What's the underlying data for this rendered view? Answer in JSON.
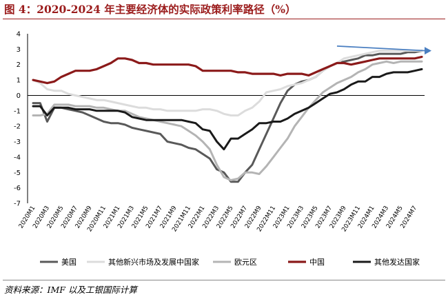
{
  "header": {
    "title": "图 4：2020-2024 年主要经济体的实际政策利率路径（%）"
  },
  "footer": {
    "source": "资料来源：IMF 以及工银国际计算"
  },
  "chart_data": {
    "type": "line",
    "title": "图 4：2020-2024 年主要经济体的实际政策利率路径（%）",
    "xlabel": "",
    "ylabel": "",
    "ylim": [
      -7,
      4
    ],
    "yticks": [
      -7,
      -6,
      -5,
      -4,
      -3,
      -2,
      -1,
      0,
      1,
      2,
      3,
      4
    ],
    "grid": false,
    "legend_position": "bottom",
    "categories": [
      "2020M1",
      "2020M2",
      "2020M3",
      "2020M4",
      "2020M5",
      "2020M6",
      "2020M7",
      "2020M8",
      "2020M9",
      "2020M10",
      "2020M11",
      "2020M12",
      "2021M1",
      "2021M2",
      "2021M3",
      "2021M4",
      "2021M5",
      "2021M6",
      "2021M7",
      "2021M8",
      "2021M9",
      "2021M10",
      "2021M11",
      "2021M12",
      "2022M1",
      "2022M2",
      "2022M3",
      "2022M4",
      "2022M5",
      "2022M6",
      "2022M7",
      "2022M8",
      "2022M9",
      "2022M10",
      "2022M11",
      "2022M12",
      "2023M1",
      "2023M2",
      "2023M3",
      "2023M4",
      "2023M5",
      "2023M6",
      "2023M7",
      "2023M8",
      "2023M9",
      "2023M10",
      "2023M11",
      "2023M12",
      "2024M1",
      "2024M2",
      "2024M3",
      "2024M4",
      "2024M5",
      "2024M6",
      "2024M7",
      "2024M8"
    ],
    "tick_labels": [
      "2020M1",
      "2020M3",
      "2020M5",
      "2020M7",
      "2020M9",
      "2020M11",
      "2021M1",
      "2021M3",
      "2021M5",
      "2021M7",
      "2021M9",
      "2021M11",
      "2022M1",
      "2022M3",
      "2022M5",
      "2022M7",
      "2022M9",
      "2022M11",
      "2023M1",
      "2023M3",
      "2023M5",
      "2023M7",
      "2023M9",
      "2023M11",
      "2024M1",
      "2024M3",
      "2024M5",
      "2024M7"
    ],
    "series": [
      {
        "name": "美国",
        "color": "#595959",
        "width": 3,
        "values": [
          -0.5,
          -0.5,
          -1.7,
          -0.8,
          -0.8,
          -0.9,
          -1.0,
          -1.1,
          -1.3,
          -1.5,
          -1.7,
          -1.8,
          -1.8,
          -1.9,
          -2.1,
          -2.2,
          -2.3,
          -2.4,
          -2.5,
          -3.0,
          -3.1,
          -3.2,
          -3.4,
          -3.5,
          -3.8,
          -4.1,
          -4.8,
          -5.0,
          -5.6,
          -5.6,
          -5.0,
          -4.5,
          -3.5,
          -2.5,
          -1.5,
          -0.5,
          0.3,
          0.7,
          0.9,
          1.0,
          1.2,
          1.6,
          1.9,
          2.1,
          2.2,
          2.3,
          2.4,
          2.6,
          2.6,
          2.7,
          2.7,
          2.7,
          2.7,
          2.8,
          2.8,
          2.9
        ]
      },
      {
        "name": "其他新兴市场及发展中国家",
        "color": "#dcdcdc",
        "width": 3,
        "values": [
          1.0,
          0.8,
          0.4,
          0.3,
          0.3,
          0.1,
          0.0,
          -0.1,
          -0.2,
          -0.3,
          -0.3,
          -0.4,
          -0.5,
          -0.6,
          -0.7,
          -0.8,
          -0.8,
          -0.9,
          -0.9,
          -1.0,
          -1.0,
          -1.0,
          -1.0,
          -1.0,
          -0.9,
          -0.9,
          -1.0,
          -1.2,
          -1.3,
          -1.3,
          -1.0,
          -0.8,
          -0.4,
          0.2,
          0.3,
          0.4,
          0.6,
          0.7,
          0.8,
          1.0,
          1.2,
          1.6,
          1.9,
          2.1,
          2.4,
          2.5,
          2.6,
          2.7,
          2.8,
          2.9,
          2.9,
          2.9,
          2.9,
          2.9,
          2.9,
          2.9
        ]
      },
      {
        "name": "欧元区",
        "color": "#b4b4b4",
        "width": 3,
        "values": [
          -1.3,
          -1.3,
          -1.2,
          -0.6,
          -0.6,
          -0.6,
          -0.7,
          -0.7,
          -0.7,
          -0.8,
          -0.8,
          -0.9,
          -1.0,
          -1.0,
          -1.2,
          -1.4,
          -1.5,
          -1.6,
          -1.7,
          -1.8,
          -1.9,
          -2.0,
          -2.3,
          -2.6,
          -3.0,
          -3.5,
          -4.5,
          -5.3,
          -5.5,
          -5.4,
          -5.0,
          -5.0,
          -5.1,
          -4.6,
          -4.0,
          -3.4,
          -2.8,
          -2.0,
          -1.4,
          -0.8,
          -0.3,
          0.2,
          0.5,
          0.8,
          1.0,
          1.2,
          1.5,
          1.7,
          2.0,
          2.1,
          2.2,
          2.1,
          2.2,
          2.2,
          2.2,
          2.2
        ]
      },
      {
        "name": "中国",
        "color": "#8b1a1a",
        "width": 3.2,
        "values": [
          1.0,
          0.9,
          0.8,
          0.9,
          1.2,
          1.4,
          1.6,
          1.6,
          1.6,
          1.7,
          1.9,
          2.1,
          2.4,
          2.4,
          2.3,
          2.1,
          2.1,
          2.0,
          2.0,
          2.0,
          2.0,
          2.0,
          2.0,
          1.9,
          1.6,
          1.6,
          1.6,
          1.6,
          1.6,
          1.5,
          1.5,
          1.4,
          1.4,
          1.4,
          1.4,
          1.3,
          1.4,
          1.4,
          1.4,
          1.3,
          1.5,
          1.7,
          1.9,
          2.1,
          2.1,
          2.0,
          2.1,
          2.2,
          2.3,
          2.4,
          2.4,
          2.4,
          2.4,
          2.4,
          2.4,
          2.5
        ]
      },
      {
        "name": "其他发达国家",
        "color": "#1a1a1a",
        "width": 3,
        "values": [
          -0.7,
          -0.7,
          -1.3,
          -0.8,
          -0.8,
          -0.8,
          -0.9,
          -0.9,
          -0.9,
          -1.0,
          -1.0,
          -1.0,
          -1.0,
          -1.1,
          -1.4,
          -1.5,
          -1.6,
          -1.6,
          -1.6,
          -1.6,
          -1.6,
          -1.6,
          -1.7,
          -1.8,
          -2.2,
          -2.3,
          -3.0,
          -3.5,
          -2.8,
          -2.8,
          -2.5,
          -2.2,
          -1.8,
          -1.8,
          -1.7,
          -1.7,
          -1.5,
          -1.2,
          -1.0,
          -0.8,
          -0.5,
          -0.2,
          0.1,
          0.2,
          0.4,
          0.7,
          0.9,
          0.9,
          1.2,
          1.2,
          1.4,
          1.5,
          1.5,
          1.5,
          1.6,
          1.7
        ]
      }
    ],
    "annotation": {
      "type": "arrow",
      "color": "#4a7fc1",
      "from": {
        "x": "2023M8",
        "y": 3.2
      },
      "to": {
        "x": "2024M8",
        "y": 2.9
      }
    }
  }
}
